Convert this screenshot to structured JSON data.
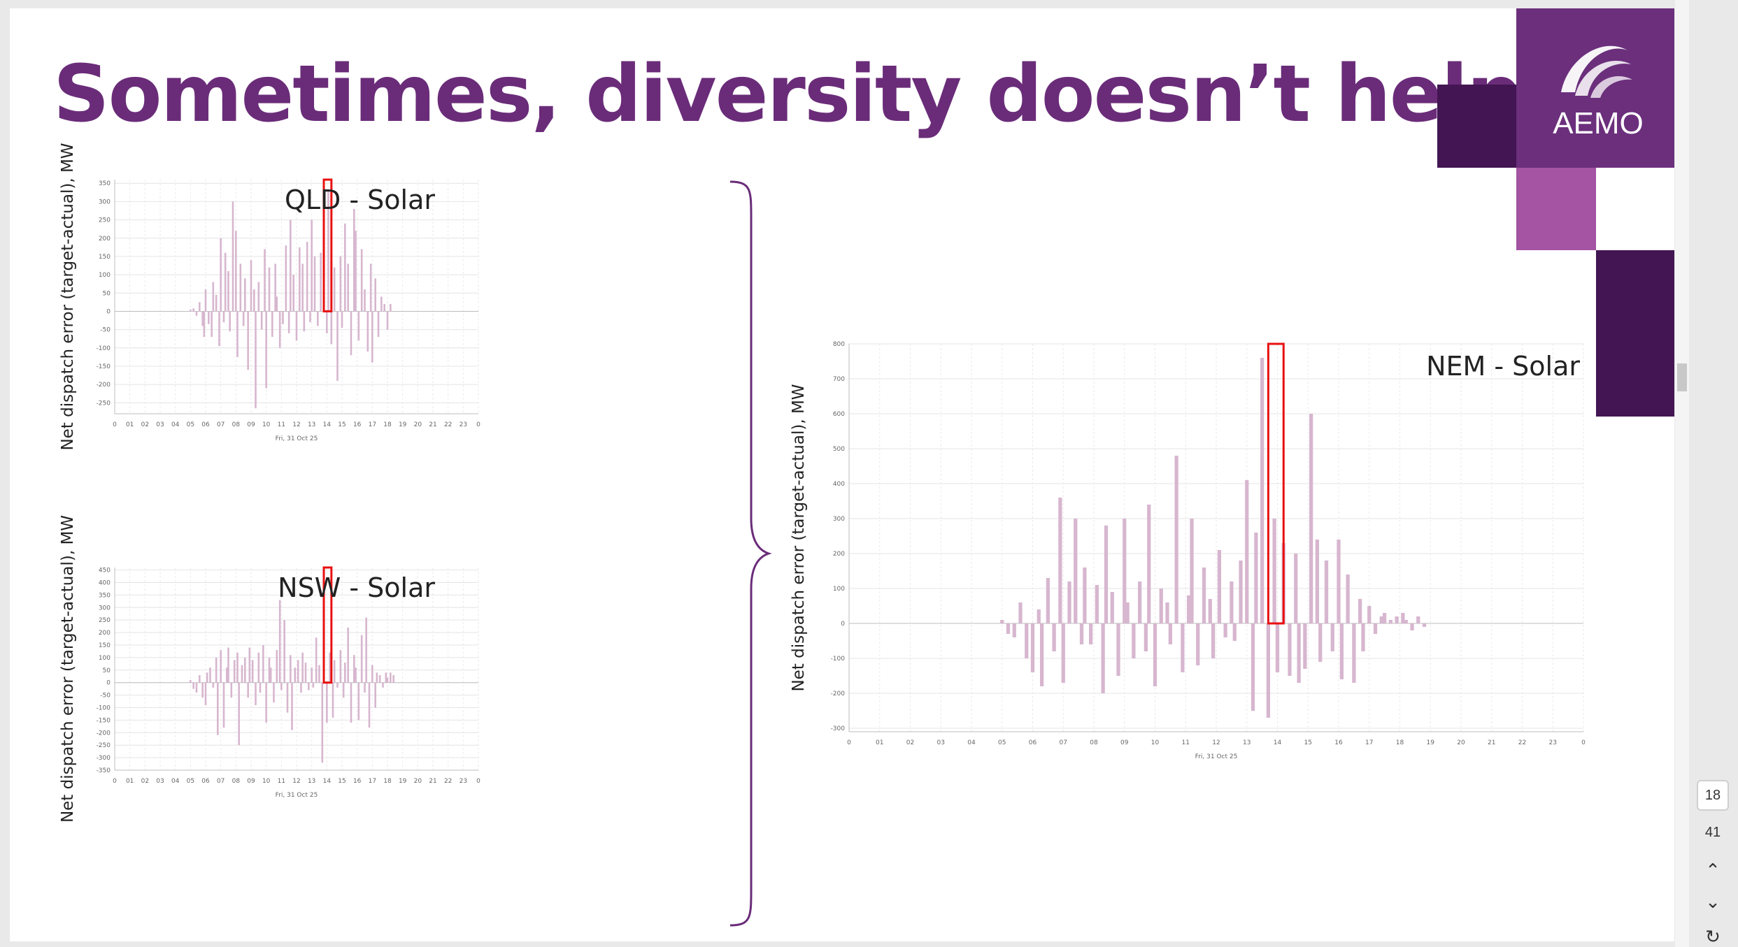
{
  "slide": {
    "title": "Sometimes, diversity doesn’t help",
    "logo": "AEMO",
    "colors": {
      "title": "#6a2c79",
      "deco_dark": "#431553",
      "deco_mid": "#6b2f7c",
      "deco_light": "#a454a3",
      "bar": "#d7b6cf",
      "highlight": "#e81010"
    }
  },
  "pager": {
    "current": "18",
    "total": "41",
    "up_icon": "chevron-up-icon",
    "down_icon": "chevron-down-icon",
    "refresh_icon": "refresh-icon"
  },
  "chart_data": [
    {
      "type": "bar",
      "title": "QLD - Solar",
      "ylabel": "Net dispatch error (target-actual), MW",
      "xlabel": "Fri, 31 Oct 25",
      "ylim": [
        -280,
        360
      ],
      "yticks": [
        350,
        300,
        250,
        200,
        150,
        100,
        50,
        0,
        -50,
        -100,
        -150,
        -200,
        -250
      ],
      "xticks": [
        "0",
        "01",
        "02",
        "03",
        "04",
        "05",
        "06",
        "07",
        "08",
        "09",
        "10",
        "11",
        "12",
        "13",
        "14",
        "15",
        "16",
        "17",
        "18",
        "19",
        "20",
        "21",
        "22",
        "23",
        "0"
      ],
      "xlim": [
        0,
        24
      ],
      "highlight": {
        "x_start": 13.8,
        "x_end": 14.3
      },
      "x": [
        5.0,
        5.2,
        5.4,
        5.6,
        5.8,
        5.9,
        6.0,
        6.2,
        6.4,
        6.5,
        6.7,
        6.9,
        7.0,
        7.2,
        7.3,
        7.5,
        7.6,
        7.8,
        8.0,
        8.1,
        8.3,
        8.5,
        8.6,
        8.8,
        9.0,
        9.2,
        9.3,
        9.5,
        9.7,
        9.9,
        10.0,
        10.2,
        10.4,
        10.6,
        10.7,
        10.9,
        11.1,
        11.3,
        11.5,
        11.6,
        11.8,
        12.0,
        12.2,
        12.4,
        12.5,
        12.7,
        12.9,
        13.0,
        13.2,
        13.4,
        13.6,
        13.8,
        14.0,
        14.1,
        14.3,
        14.5,
        14.7,
        14.9,
        15.0,
        15.2,
        15.4,
        15.6,
        15.8,
        15.9,
        16.1,
        16.3,
        16.5,
        16.7,
        16.9,
        17.0,
        17.2,
        17.4,
        17.6,
        17.8,
        18.0,
        18.2
      ],
      "values": [
        5,
        8,
        -12,
        25,
        -40,
        -70,
        60,
        -35,
        -70,
        80,
        45,
        -95,
        200,
        -30,
        160,
        110,
        -55,
        300,
        220,
        -125,
        130,
        -40,
        90,
        -160,
        140,
        60,
        -265,
        80,
        -50,
        170,
        -210,
        120,
        -70,
        130,
        40,
        -100,
        -35,
        180,
        -60,
        250,
        100,
        -80,
        175,
        130,
        -55,
        190,
        -30,
        250,
        150,
        -40,
        160,
        345,
        -60,
        330,
        -90,
        120,
        -190,
        150,
        -45,
        240,
        130,
        -120,
        280,
        220,
        -80,
        170,
        60,
        -110,
        130,
        -140,
        90,
        -70,
        40,
        20,
        -50,
        20
      ]
    },
    {
      "type": "bar",
      "title": "NSW - Solar",
      "ylabel": "Net dispatch error (target-actual), MW",
      "xlabel": "Fri, 31 Oct 25",
      "ylim": [
        -350,
        460
      ],
      "yticks": [
        450,
        400,
        350,
        300,
        250,
        200,
        150,
        100,
        50,
        0,
        -50,
        -100,
        -150,
        -200,
        -250,
        -300,
        -350
      ],
      "xticks": [
        "0",
        "01",
        "02",
        "03",
        "04",
        "05",
        "06",
        "07",
        "08",
        "09",
        "10",
        "11",
        "12",
        "13",
        "14",
        "15",
        "16",
        "17",
        "18",
        "19",
        "20",
        "21",
        "22",
        "23",
        "0"
      ],
      "xlim": [
        0,
        24
      ],
      "highlight": {
        "x_start": 13.8,
        "x_end": 14.3
      },
      "x": [
        5.0,
        5.2,
        5.4,
        5.6,
        5.8,
        6.0,
        6.1,
        6.3,
        6.5,
        6.7,
        6.8,
        7.0,
        7.2,
        7.4,
        7.5,
        7.7,
        7.9,
        8.1,
        8.2,
        8.4,
        8.6,
        8.8,
        8.9,
        9.1,
        9.3,
        9.5,
        9.6,
        9.8,
        10.0,
        10.2,
        10.3,
        10.5,
        10.7,
        10.9,
        11.0,
        11.2,
        11.4,
        11.6,
        11.7,
        11.9,
        12.1,
        12.3,
        12.4,
        12.6,
        12.8,
        13.0,
        13.1,
        13.3,
        13.5,
        13.7,
        13.8,
        14.0,
        14.2,
        14.4,
        14.5,
        14.7,
        14.9,
        15.1,
        15.2,
        15.4,
        15.6,
        15.8,
        15.9,
        16.1,
        16.3,
        16.5,
        16.6,
        16.8,
        17.0,
        17.2,
        17.3,
        17.5,
        17.7,
        17.9,
        18.0,
        18.2,
        18.4
      ],
      "values": [
        10,
        -25,
        -40,
        30,
        -60,
        -90,
        40,
        60,
        -20,
        100,
        -210,
        130,
        -180,
        60,
        140,
        -60,
        90,
        120,
        -250,
        70,
        100,
        -60,
        140,
        90,
        -90,
        120,
        -40,
        150,
        -160,
        100,
        60,
        -80,
        130,
        330,
        -30,
        250,
        -120,
        110,
        -190,
        60,
        90,
        -40,
        120,
        80,
        -30,
        60,
        -20,
        180,
        70,
        -320,
        400,
        -160,
        120,
        -140,
        90,
        -20,
        130,
        -60,
        80,
        220,
        -160,
        110,
        60,
        -150,
        190,
        -40,
        260,
        -180,
        70,
        -100,
        40,
        30,
        -20,
        40,
        20,
        40,
        30
      ]
    },
    {
      "type": "bar",
      "title": "NEM - Solar",
      "ylabel": "Net dispatch error (target-actual), MW",
      "xlabel": "Fri, 31 Oct 25",
      "ylim": [
        -310,
        800
      ],
      "yticks": [
        800,
        700,
        600,
        500,
        400,
        300,
        200,
        100,
        0,
        -100,
        -200,
        -300
      ],
      "xticks": [
        "0",
        "01",
        "02",
        "03",
        "04",
        "05",
        "06",
        "07",
        "08",
        "09",
        "10",
        "11",
        "12",
        "13",
        "14",
        "15",
        "16",
        "17",
        "18",
        "19",
        "20",
        "21",
        "22",
        "23",
        "0"
      ],
      "xlim": [
        0,
        24
      ],
      "highlight": {
        "x_start": 13.7,
        "x_end": 14.2
      },
      "x": [
        5.0,
        5.2,
        5.4,
        5.6,
        5.8,
        6.0,
        6.2,
        6.3,
        6.5,
        6.7,
        6.9,
        7.0,
        7.2,
        7.4,
        7.6,
        7.7,
        7.9,
        8.1,
        8.3,
        8.4,
        8.6,
        8.8,
        9.0,
        9.1,
        9.3,
        9.5,
        9.7,
        9.8,
        10.0,
        10.2,
        10.4,
        10.5,
        10.7,
        10.9,
        11.1,
        11.2,
        11.4,
        11.6,
        11.8,
        11.9,
        12.1,
        12.3,
        12.5,
        12.6,
        12.8,
        13.0,
        13.2,
        13.3,
        13.5,
        13.7,
        13.9,
        14.0,
        14.2,
        14.4,
        14.6,
        14.7,
        14.9,
        15.1,
        15.3,
        15.4,
        15.6,
        15.8,
        16.0,
        16.1,
        16.3,
        16.5,
        16.7,
        16.8,
        17.0,
        17.2,
        17.4,
        17.5,
        17.7,
        17.9,
        18.1,
        18.2,
        18.4,
        18.6,
        18.8
      ],
      "values": [
        10,
        -30,
        -40,
        60,
        -100,
        -140,
        40,
        -180,
        130,
        -80,
        360,
        -170,
        120,
        300,
        -60,
        160,
        -60,
        110,
        -200,
        280,
        90,
        -150,
        300,
        60,
        -100,
        120,
        -80,
        340,
        -180,
        100,
        60,
        -60,
        480,
        -140,
        80,
        300,
        -120,
        160,
        70,
        -100,
        210,
        -40,
        120,
        -50,
        180,
        410,
        -250,
        260,
        760,
        -270,
        300,
        -140,
        230,
        -150,
        200,
        -170,
        -130,
        600,
        240,
        -110,
        180,
        -80,
        240,
        -160,
        140,
        -170,
        70,
        -80,
        50,
        -30,
        20,
        30,
        10,
        20,
        30,
        10,
        -20,
        20,
        -10
      ]
    }
  ]
}
